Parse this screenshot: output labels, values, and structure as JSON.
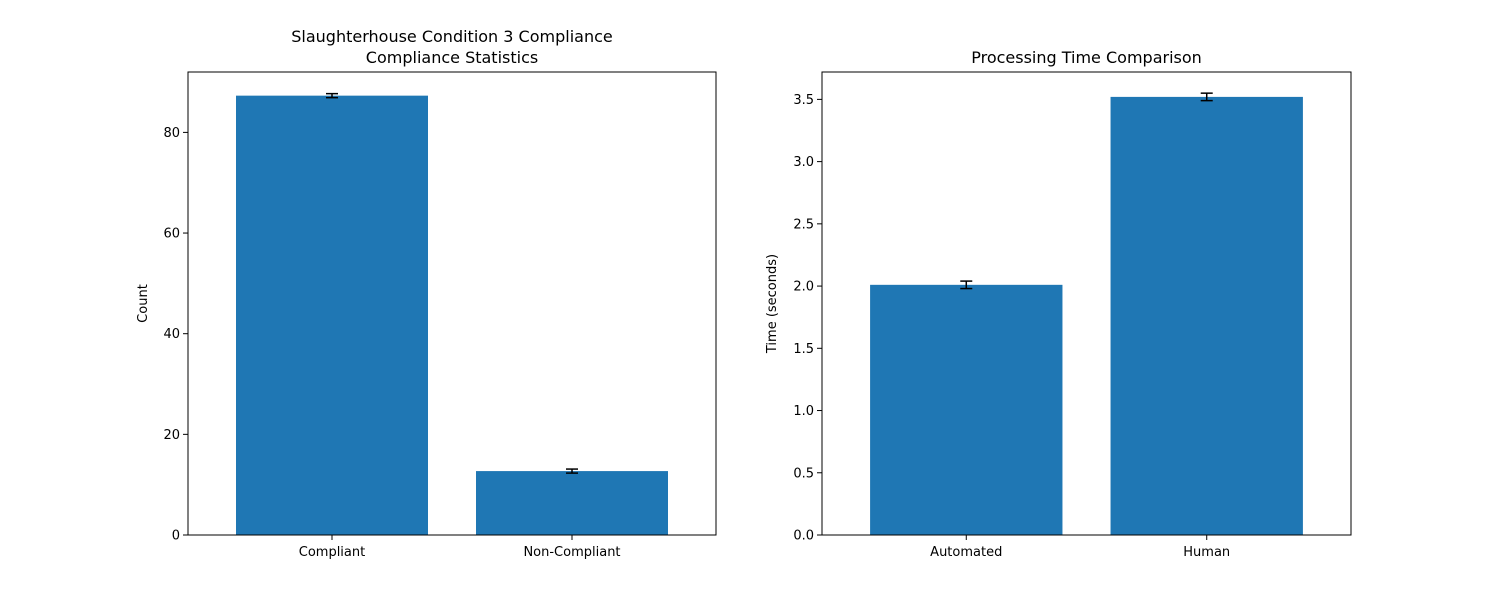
{
  "chart_data": [
    {
      "type": "bar",
      "title": "Slaughterhouse Condition 3 Compliance\nCompliance Statistics",
      "xlabel": "",
      "ylabel": "Count",
      "categories": [
        "Compliant",
        "Non-Compliant"
      ],
      "values": [
        87.3,
        12.7
      ],
      "errors": [
        0.4,
        0.4
      ],
      "ylim": [
        0,
        92
      ],
      "yticks": [
        0,
        20,
        40,
        60,
        80
      ],
      "ytick_labels": [
        "0",
        "20",
        "40",
        "60",
        "80"
      ],
      "grid": false,
      "color": "#1f77b4"
    },
    {
      "type": "bar",
      "title": "Processing Time Comparison",
      "xlabel": "",
      "ylabel": "Time (seconds)",
      "categories": [
        "Automated",
        "Human"
      ],
      "values": [
        2.01,
        3.52
      ],
      "errors": [
        0.03,
        0.03
      ],
      "ylim": [
        0,
        3.72
      ],
      "yticks": [
        0,
        0.5,
        1,
        1.5,
        2,
        2.5,
        3,
        3.5
      ],
      "ytick_labels": [
        "0.0",
        "0.5",
        "1.0",
        "1.5",
        "2.0",
        "2.5",
        "3.0",
        "3.5"
      ],
      "grid": false,
      "color": "#1f77b4"
    }
  ]
}
